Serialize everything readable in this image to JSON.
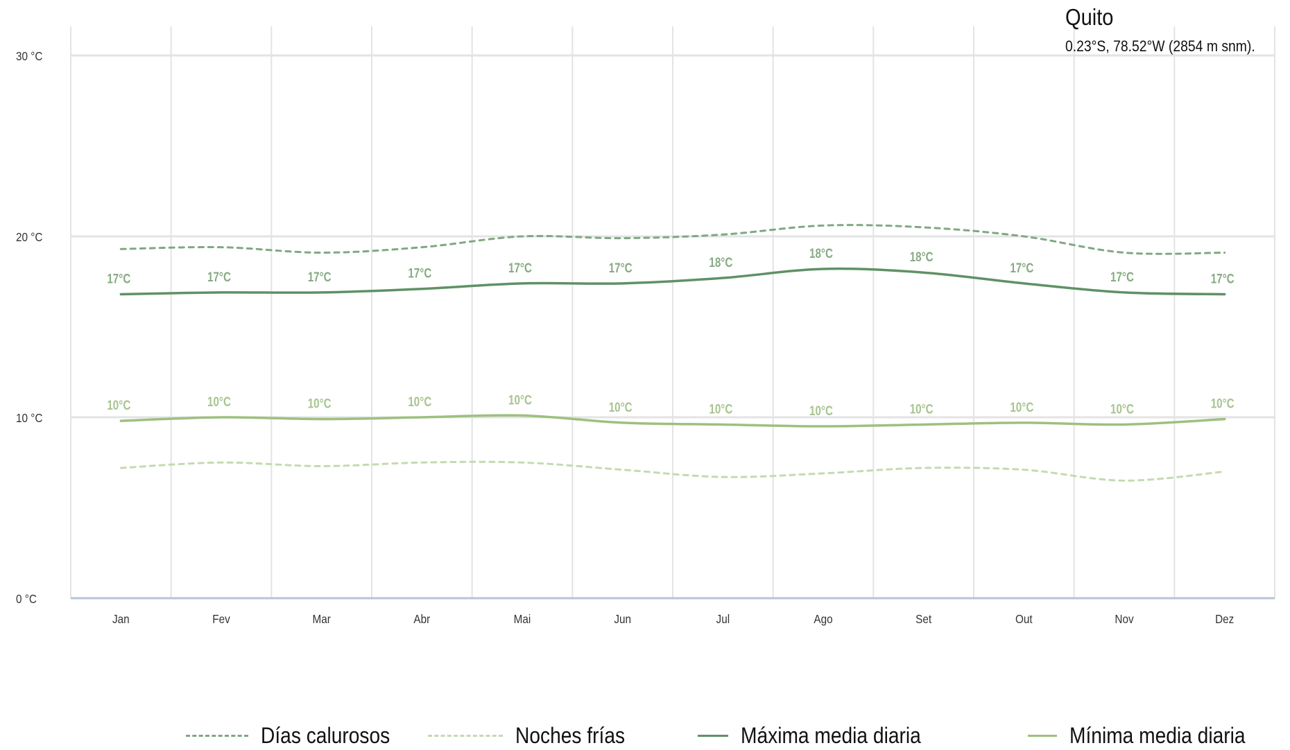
{
  "header": {
    "title": "Quito",
    "subtitle": "0.23°S, 78.52°W (2854 m snm)."
  },
  "colors": {
    "hot_days": "#7fa882",
    "cold_nights": "#c5dab0",
    "max_line": "#5f9165",
    "min_line": "#9dc07f",
    "max_label": "#86ab83",
    "min_label": "#a7c48f",
    "grid": "#e3e3e3",
    "zero_axis": "#b7c4d8",
    "tick_text": "#333333"
  },
  "chart_data": {
    "type": "line",
    "categories": [
      "Jan",
      "Fev",
      "Mar",
      "Abr",
      "Mai",
      "Jun",
      "Jul",
      "Ago",
      "Set",
      "Out",
      "Nov",
      "Dez"
    ],
    "ylim": [
      0,
      30
    ],
    "yticks": [
      0,
      10,
      20,
      30
    ],
    "ytick_labels": [
      "0 °C",
      "10 °C",
      "20 °C",
      "30 °C"
    ],
    "grid": true,
    "legend_position": "bottom",
    "series": [
      {
        "name": "Días calurosos",
        "style": "dashed",
        "values": [
          19.3,
          19.4,
          19.1,
          19.4,
          20.0,
          19.9,
          20.1,
          20.6,
          20.5,
          20.0,
          19.1,
          19.1
        ]
      },
      {
        "name": "Noches frías",
        "style": "dashed",
        "values": [
          7.2,
          7.5,
          7.3,
          7.5,
          7.5,
          7.1,
          6.7,
          6.9,
          7.2,
          7.1,
          6.5,
          7.0
        ]
      },
      {
        "name": "Máxima media diaria",
        "style": "solid",
        "values": [
          16.8,
          16.9,
          16.9,
          17.1,
          17.4,
          17.4,
          17.7,
          18.2,
          18.0,
          17.4,
          16.9,
          16.8
        ],
        "data_labels": [
          "17°C",
          "17°C",
          "17°C",
          "17°C",
          "17°C",
          "17°C",
          "18°C",
          "18°C",
          "18°C",
          "17°C",
          "17°C",
          "17°C"
        ]
      },
      {
        "name": "Mínima media diaria",
        "style": "solid",
        "values": [
          9.8,
          10.0,
          9.9,
          10.0,
          10.1,
          9.7,
          9.6,
          9.5,
          9.6,
          9.7,
          9.6,
          9.9
        ],
        "data_labels": [
          "10°C",
          "10°C",
          "10°C",
          "10°C",
          "10°C",
          "10°C",
          "10°C",
          "10°C",
          "10°C",
          "10°C",
          "10°C",
          "10°C"
        ]
      }
    ]
  }
}
